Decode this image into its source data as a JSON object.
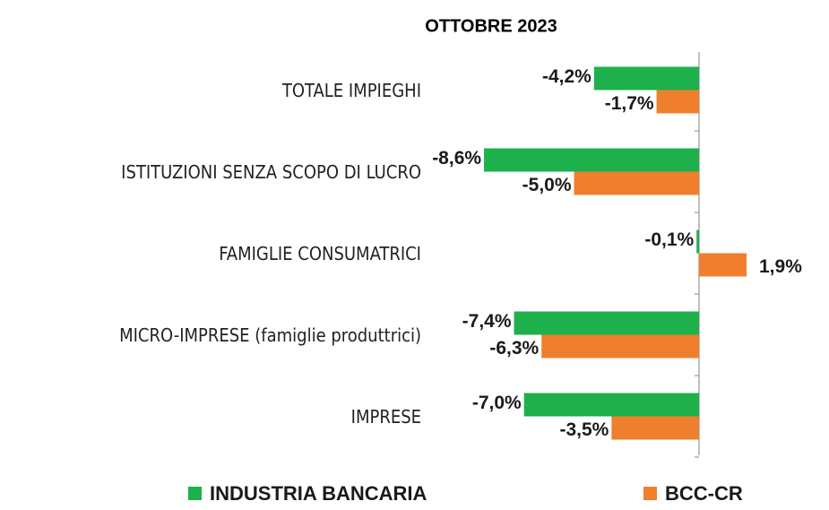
{
  "chart_data": {
    "type": "hbar",
    "title": "OTTOBRE 2023",
    "categories": [
      "TOTALE IMPIEGHI",
      "ISTITUZIONI SENZA SCOPO DI LUCRO",
      "FAMIGLIE CONSUMATRICI",
      "MICRO-IMPRESE (famiglie produttrici)",
      "IMPRESE"
    ],
    "series": [
      {
        "name": "INDUSTRIA BANCARIA",
        "color": "#1db04b",
        "values": [
          -4.2,
          -8.6,
          -0.1,
          -7.4,
          -7.0
        ],
        "value_labels": [
          "-4,2%",
          "-8,6%",
          "-0,1%",
          "-7,4%",
          "-7,0%"
        ]
      },
      {
        "name": "BCC-CR",
        "color": "#f07f2d",
        "values": [
          -1.7,
          -5.0,
          1.9,
          -6.3,
          -3.5
        ],
        "value_labels": [
          "-1,7%",
          "-5,0%",
          "1,9%",
          "-6,3%",
          "-3,5%"
        ]
      }
    ]
  }
}
